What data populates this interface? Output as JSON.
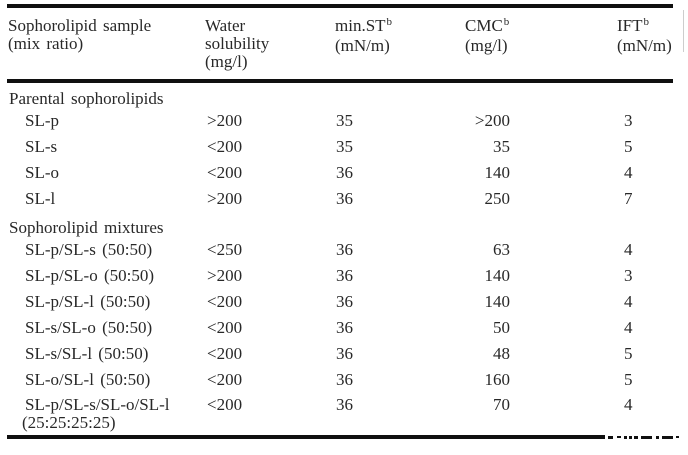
{
  "colors": {
    "rule": "#101010",
    "text": "#282828",
    "background": "#ffffff"
  },
  "table": {
    "header": {
      "sample": {
        "line1": "Sophorolipid sample",
        "line2": "(mix ratio)"
      },
      "water": {
        "line1": "Water",
        "line2": "solubility",
        "line3": "(mg/l)"
      },
      "min_st": {
        "label": "min.ST",
        "sup": "b",
        "unit": "(mN/m)"
      },
      "cmc": {
        "label": "CMC",
        "sup": "b",
        "unit": "(mg/l)"
      },
      "ift": {
        "label": "IFT",
        "sup": "b",
        "unit": "(mN/m)"
      }
    },
    "sections": [
      {
        "title": "Parental sophorolipids",
        "rows": [
          {
            "sample": "SL-p",
            "water": ">200",
            "st": "35",
            "cmc": ">200",
            "ift": "3"
          },
          {
            "sample": "SL-s",
            "water": "<200",
            "st": "35",
            "cmc": "35",
            "ift": "5"
          },
          {
            "sample": "SL-o",
            "water": "<200",
            "st": "36",
            "cmc": "140",
            "ift": "4"
          },
          {
            "sample": "SL-l",
            "water": ">200",
            "st": "36",
            "cmc": "250",
            "ift": "7"
          }
        ]
      },
      {
        "title": "Sophorolipid mixtures",
        "rows": [
          {
            "sample": "SL-p/SL-s (50:50)",
            "water": "<250",
            "st": "36",
            "cmc": "63",
            "ift": "4"
          },
          {
            "sample": "SL-p/SL-o (50:50)",
            "water": ">200",
            "st": "36",
            "cmc": "140",
            "ift": "3"
          },
          {
            "sample": "SL-p/SL-l (50:50)",
            "water": "<200",
            "st": "36",
            "cmc": "140",
            "ift": "4"
          },
          {
            "sample": "SL-s/SL-o (50:50)",
            "water": "<200",
            "st": "36",
            "cmc": "50",
            "ift": "4"
          },
          {
            "sample": "SL-s/SL-l (50:50)",
            "water": "<200",
            "st": "36",
            "cmc": "48",
            "ift": "5"
          },
          {
            "sample": "SL-o/SL-l (50:50)",
            "water": "<200",
            "st": "36",
            "cmc": "160",
            "ift": "5"
          },
          {
            "sample": "SL-p/SL-s/SL-o/SL-l",
            "sample_line2": "(25:25:25:25)",
            "water": "<200",
            "st": "36",
            "cmc": "70",
            "ift": "4"
          }
        ]
      }
    ]
  }
}
